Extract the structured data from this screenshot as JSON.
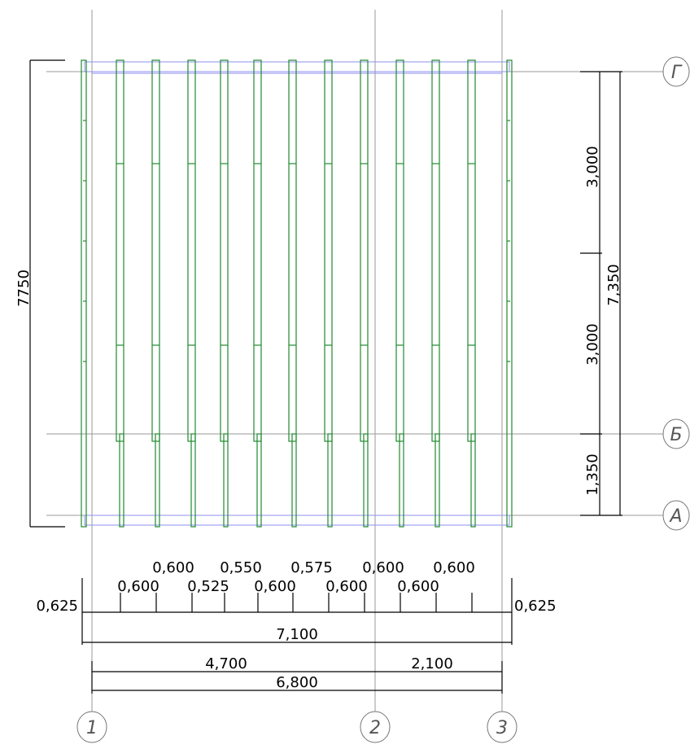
{
  "grid_axes": {
    "horizontal": [
      "Г",
      "Б",
      "А"
    ],
    "vertical": [
      "1",
      "2",
      "3"
    ]
  },
  "dimensions": {
    "overall_height": "7750",
    "right_total": "7,350",
    "right_segments": [
      "3,000",
      "3,000",
      "1,350"
    ],
    "bottom_edge_left": "0,625",
    "bottom_edge_right": "0,625",
    "bottom_upper_row": [
      "0,600",
      "0,550",
      "0,575",
      "0,600",
      "0,600"
    ],
    "bottom_lower_row": [
      "0,600",
      "0,525",
      "0,600",
      "0,600",
      "0,600"
    ],
    "overall_width": "7,100",
    "axis_1_2": "4,700",
    "axis_2_3": "2,100",
    "axis_1_3": "6,800"
  },
  "colors": {
    "beam": "#1f8a2e",
    "outline": "#8f8ff0",
    "grid_line": "#9a9a9a",
    "dimension": "#000000"
  }
}
